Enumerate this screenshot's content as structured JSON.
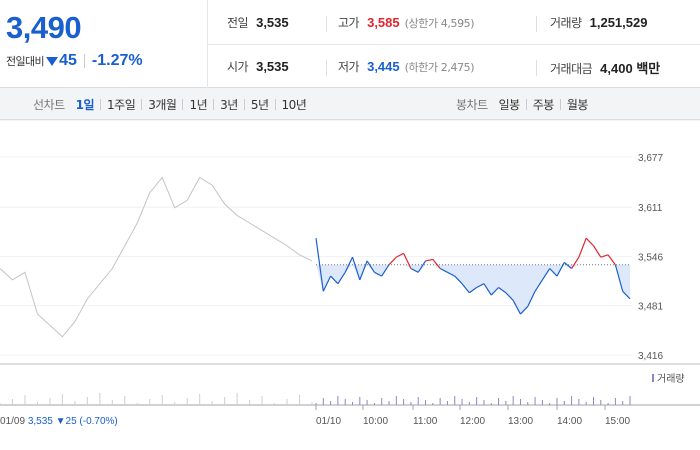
{
  "quote": {
    "price": "3,490",
    "change_label": "전일대비",
    "change_value": "45",
    "change_rate": "-1.27%"
  },
  "stats": {
    "prev_close": {
      "label": "전일",
      "value": "3,535"
    },
    "high": {
      "label": "고가",
      "value": "3,585",
      "sub": "(상한가 4,595)"
    },
    "volume": {
      "label": "거래량",
      "value": "1,251,529"
    },
    "open": {
      "label": "시가",
      "value": "3,535"
    },
    "low": {
      "label": "저가",
      "value": "3,445",
      "sub": "(하한가 2,475)"
    },
    "trade_amount": {
      "label": "거래대금",
      "value": "4,400 백만"
    }
  },
  "line_tabs": {
    "title": "선차트",
    "items": [
      "1일",
      "1주일",
      "3개월",
      "1년",
      "3년",
      "5년",
      "10년"
    ],
    "active": "1일"
  },
  "candle_tabs": {
    "title": "봉차트",
    "items": [
      "일봉",
      "주봉",
      "월봉"
    ]
  },
  "colors": {
    "up": "#e0252f",
    "down": "#1a5fcf",
    "prev_day_line": "#c4c4c4",
    "volume": "#8f84c4"
  },
  "chart_data": {
    "type": "line",
    "y_ticks": [
      "3,677",
      "3,611",
      "3,546",
      "3,481",
      "3,416"
    ],
    "ylim": [
      3416,
      3677
    ],
    "baseline": 3535,
    "x_ticks": [
      "01/10",
      "10:00",
      "11:00",
      "12:00",
      "13:00",
      "14:00",
      "15:00"
    ],
    "prev_day": {
      "date": "01/09",
      "close": "3,535",
      "change": "25",
      "rate": "(-0.70%)",
      "points": [
        3530,
        3515,
        3525,
        3470,
        3455,
        3440,
        3460,
        3490,
        3510,
        3530,
        3560,
        3590,
        3630,
        3650,
        3610,
        3620,
        3650,
        3640,
        3615,
        3600,
        3590,
        3580,
        3570,
        3560,
        3548,
        3540
      ]
    },
    "today": {
      "points": [
        3570,
        3500,
        3520,
        3510,
        3525,
        3545,
        3515,
        3540,
        3525,
        3520,
        3535,
        3545,
        3550,
        3530,
        3525,
        3540,
        3542,
        3530,
        3525,
        3520,
        3510,
        3498,
        3505,
        3510,
        3495,
        3505,
        3498,
        3488,
        3470,
        3480,
        3500,
        3515,
        3530,
        3520,
        3538,
        3530,
        3545,
        3570,
        3560,
        3545,
        3548,
        3535,
        3500,
        3490
      ]
    },
    "volume_legend": "거래량"
  }
}
